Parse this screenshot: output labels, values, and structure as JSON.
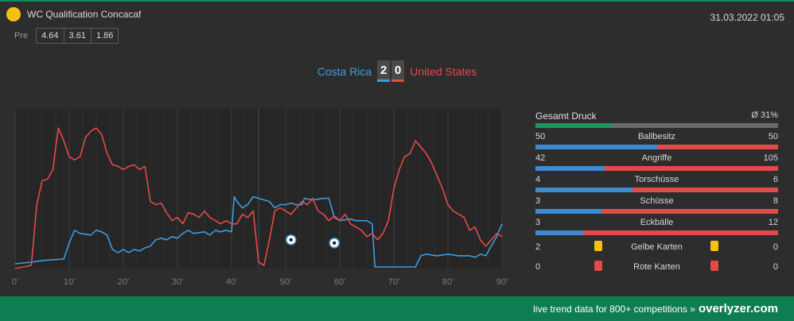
{
  "header": {
    "league": "WC Qualification Concacaf",
    "datetime": "31.03.2022 01:05",
    "odds_label": "Pre",
    "odds": [
      "4.64",
      "3.61",
      "1.86"
    ]
  },
  "match": {
    "home": "Costa Rica",
    "away": "United States",
    "home_score": "2",
    "away_score": "0"
  },
  "colors": {
    "home": "#3d9be0",
    "away": "#e24a48",
    "accent": "#118a5a",
    "yellow_card": "#f4c20d",
    "red_card": "#e24a48"
  },
  "chart_data": {
    "type": "line",
    "x_ticks": [
      "0'",
      "10'",
      "20'",
      "30'",
      "40'",
      "50'",
      "60'",
      "70'",
      "80'",
      "90'"
    ],
    "xlim": [
      0,
      90
    ],
    "ylim": [
      0,
      100
    ],
    "goals": [
      {
        "minute": 51,
        "team": "Costa Rica",
        "y": 18
      },
      {
        "minute": 59,
        "team": "Costa Rica",
        "y": 16
      }
    ],
    "series": [
      {
        "name": "Costa Rica",
        "color": "#3d9be0",
        "points": [
          [
            0,
            3
          ],
          [
            3,
            4
          ],
          [
            5,
            5
          ],
          [
            9,
            6
          ],
          [
            10,
            16
          ],
          [
            11,
            24
          ],
          [
            12,
            22
          ],
          [
            14,
            21
          ],
          [
            15,
            24
          ],
          [
            16,
            23
          ],
          [
            17,
            21
          ],
          [
            18,
            12
          ],
          [
            19,
            10
          ],
          [
            20,
            12
          ],
          [
            21,
            10
          ],
          [
            22,
            12
          ],
          [
            23,
            11
          ],
          [
            24,
            13
          ],
          [
            25,
            14
          ],
          [
            26,
            18
          ],
          [
            27,
            19
          ],
          [
            28,
            18
          ],
          [
            29,
            20
          ],
          [
            30,
            19
          ],
          [
            31,
            22
          ],
          [
            32,
            24
          ],
          [
            33,
            22
          ],
          [
            35,
            23
          ],
          [
            36,
            21
          ],
          [
            37,
            24
          ],
          [
            38,
            23
          ],
          [
            39,
            24
          ],
          [
            40,
            23
          ],
          [
            40.5,
            45
          ],
          [
            41,
            42
          ],
          [
            42,
            38
          ],
          [
            43,
            40
          ],
          [
            44,
            45
          ],
          [
            45,
            44
          ],
          [
            46,
            43
          ],
          [
            47,
            42
          ],
          [
            48,
            38
          ],
          [
            49,
            40
          ],
          [
            50,
            40
          ],
          [
            51,
            41
          ],
          [
            52,
            40
          ],
          [
            53,
            40
          ],
          [
            53.5,
            44
          ],
          [
            55,
            43
          ],
          [
            57,
            44
          ],
          [
            58,
            44
          ],
          [
            59,
            32
          ],
          [
            60,
            30
          ],
          [
            62,
            31
          ],
          [
            63,
            30
          ],
          [
            65,
            30
          ],
          [
            66,
            28
          ],
          [
            66.5,
            1
          ],
          [
            68,
            1
          ],
          [
            70,
            1
          ],
          [
            72,
            1
          ],
          [
            74,
            1
          ],
          [
            75,
            8
          ],
          [
            76,
            9
          ],
          [
            78,
            8
          ],
          [
            80,
            9
          ],
          [
            82,
            8
          ],
          [
            84,
            8
          ],
          [
            85,
            7
          ],
          [
            86,
            9
          ],
          [
            87,
            8
          ],
          [
            88,
            14
          ],
          [
            89,
            20
          ],
          [
            90,
            28
          ]
        ]
      },
      {
        "name": "United States",
        "color": "#e24a48",
        "points": [
          [
            0,
            0
          ],
          [
            3,
            2
          ],
          [
            4,
            40
          ],
          [
            5,
            55
          ],
          [
            6,
            56
          ],
          [
            7,
            62
          ],
          [
            7.5,
            76
          ],
          [
            8,
            88
          ],
          [
            9,
            80
          ],
          [
            10,
            70
          ],
          [
            11,
            68
          ],
          [
            12,
            70
          ],
          [
            13,
            82
          ],
          [
            14,
            86
          ],
          [
            15,
            88
          ],
          [
            16,
            84
          ],
          [
            17,
            72
          ],
          [
            18,
            65
          ],
          [
            19,
            64
          ],
          [
            20,
            62
          ],
          [
            21,
            64
          ],
          [
            22,
            65
          ],
          [
            23,
            62
          ],
          [
            24,
            64
          ],
          [
            25,
            42
          ],
          [
            26,
            40
          ],
          [
            27,
            41
          ],
          [
            28,
            35
          ],
          [
            29,
            30
          ],
          [
            30,
            32
          ],
          [
            31,
            28
          ],
          [
            32,
            35
          ],
          [
            33,
            34
          ],
          [
            34,
            32
          ],
          [
            35,
            36
          ],
          [
            36,
            32
          ],
          [
            37,
            30
          ],
          [
            38,
            28
          ],
          [
            39,
            30
          ],
          [
            40,
            28
          ],
          [
            41,
            28
          ],
          [
            42,
            34
          ],
          [
            43,
            32
          ],
          [
            44,
            36
          ],
          [
            45,
            4
          ],
          [
            46,
            2
          ],
          [
            47,
            18
          ],
          [
            48,
            36
          ],
          [
            49,
            38
          ],
          [
            50,
            36
          ],
          [
            51,
            34
          ],
          [
            52,
            38
          ],
          [
            53,
            42
          ],
          [
            54,
            40
          ],
          [
            55,
            44
          ],
          [
            56,
            36
          ],
          [
            57,
            34
          ],
          [
            58,
            30
          ],
          [
            59,
            33
          ],
          [
            60,
            30
          ],
          [
            61,
            34
          ],
          [
            62,
            28
          ],
          [
            63,
            26
          ],
          [
            64,
            24
          ],
          [
            65,
            20
          ],
          [
            66,
            22
          ],
          [
            67,
            18
          ],
          [
            68,
            22
          ],
          [
            69,
            30
          ],
          [
            70,
            50
          ],
          [
            71,
            62
          ],
          [
            72,
            70
          ],
          [
            73,
            72
          ],
          [
            74,
            80
          ],
          [
            75,
            76
          ],
          [
            76,
            72
          ],
          [
            77,
            66
          ],
          [
            78,
            58
          ],
          [
            79,
            50
          ],
          [
            80,
            40
          ],
          [
            81,
            36
          ],
          [
            82,
            34
          ],
          [
            83,
            32
          ],
          [
            84,
            24
          ],
          [
            85,
            26
          ],
          [
            86,
            18
          ],
          [
            87,
            14
          ],
          [
            88,
            18
          ],
          [
            89,
            22
          ],
          [
            90,
            20
          ]
        ]
      }
    ]
  },
  "stats": {
    "druck": {
      "label": "Gesamt Druck",
      "value": "Ø 31%",
      "percent": 31
    },
    "rows": [
      {
        "label": "Ballbesitz",
        "home": "50",
        "away": "50"
      },
      {
        "label": "Angriffe",
        "home": "42",
        "away": "105"
      },
      {
        "label": "Torschüsse",
        "home": "4",
        "away": "6"
      },
      {
        "label": "Schüsse",
        "home": "3",
        "away": "8"
      },
      {
        "label": "Eckbälle",
        "home": "3",
        "away": "12"
      }
    ],
    "cards": [
      {
        "label": "Gelbe Karten",
        "home": "2",
        "away": "0",
        "type": "yellow"
      },
      {
        "label": "Rote Karten",
        "home": "0",
        "away": "0",
        "type": "red"
      }
    ]
  },
  "footer": {
    "text": "live trend data for 800+ competitions »",
    "brand": "overlyzer.com"
  }
}
